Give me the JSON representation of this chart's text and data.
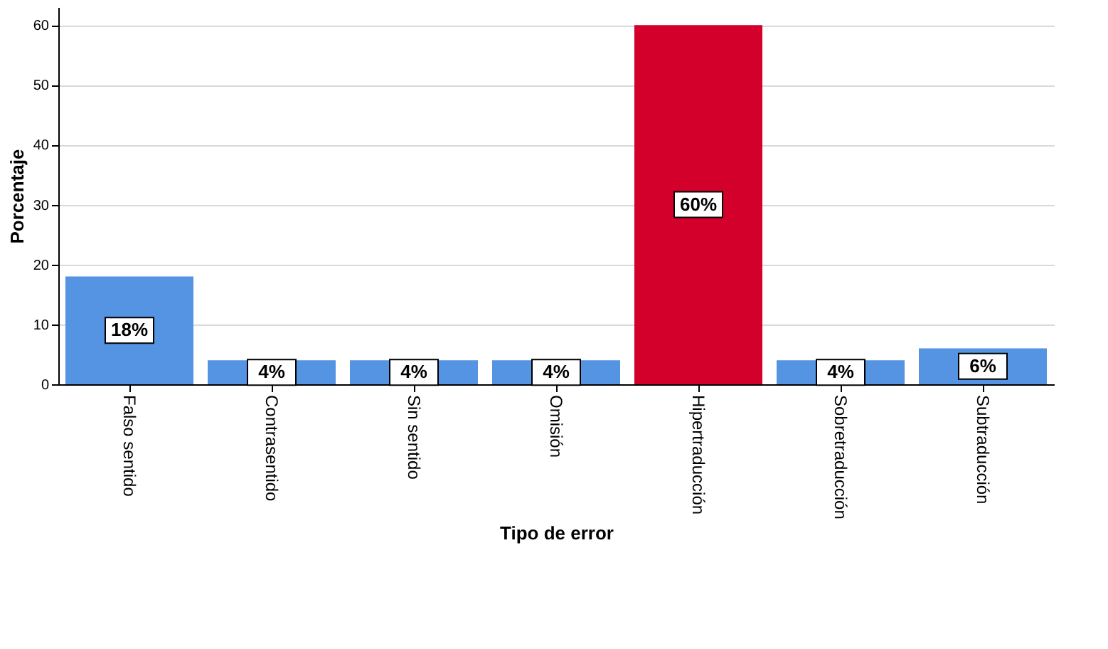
{
  "chart_data": {
    "type": "bar",
    "xlabel": "Tipo de error",
    "ylabel": "Porcentaje",
    "categories": [
      "Falso sentido",
      "Contrasentido",
      "Sin sentido",
      "Omisión",
      "Hipertraducción",
      "Sobretraducción",
      "Subtraducción"
    ],
    "values": [
      18,
      4,
      4,
      4,
      60,
      4,
      6
    ],
    "colors": [
      "#5593e3",
      "#5593e3",
      "#5593e3",
      "#5593e3",
      "#d3002c",
      "#5593e3",
      "#5593e3"
    ],
    "value_labels": [
      "18%",
      "4%",
      "4%",
      "4%",
      "60%",
      "4%",
      "6%"
    ],
    "ylim": [
      0,
      63
    ],
    "yticks": [
      0,
      10,
      20,
      30,
      40,
      50,
      60
    ],
    "grid": "y"
  }
}
